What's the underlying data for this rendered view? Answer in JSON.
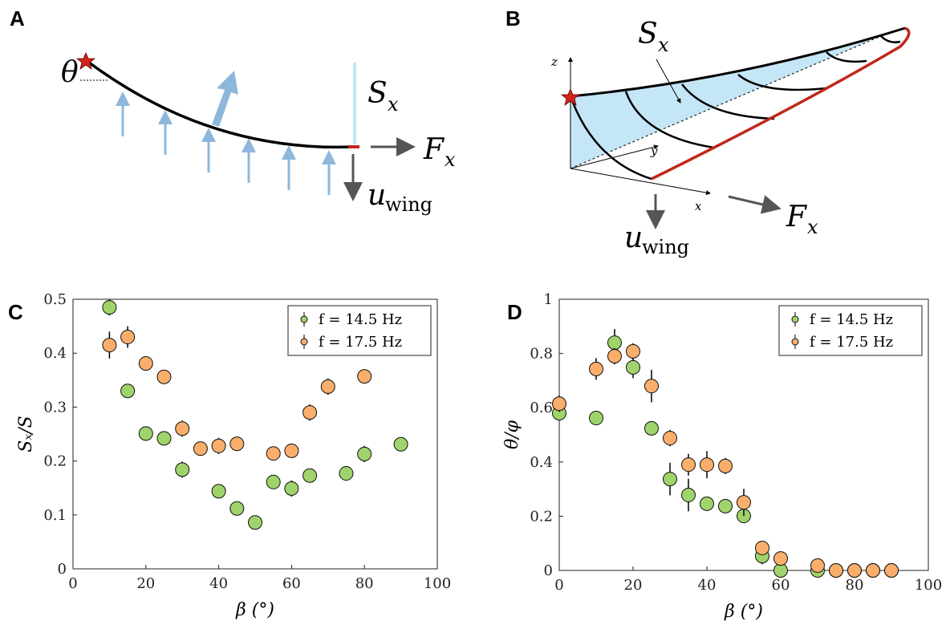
{
  "panel_labels": [
    "A",
    "B",
    "C",
    "D"
  ],
  "diagram_a": {
    "theta": "θ",
    "s_x": {
      "base": "S",
      "sub": "x"
    },
    "f_x": {
      "base": "F",
      "sub": "x"
    },
    "u_wing": {
      "base": "u",
      "sub": "wing"
    }
  },
  "diagram_b": {
    "s_x": {
      "base": "S",
      "sub": "x"
    },
    "f_x": {
      "base": "F",
      "sub": "x"
    },
    "u_wing": {
      "base": "u",
      "sub": "wing"
    },
    "axis_z": "z",
    "axis_y": "y",
    "axis_x": "x"
  },
  "chart_data": [
    {
      "type": "scatter",
      "xlabel": "β (°)",
      "ylabel": "Sₓ/S",
      "xlim": [
        0,
        100
      ],
      "ylim": [
        0,
        0.5
      ],
      "xticks": [
        0,
        20,
        40,
        60,
        80,
        100
      ],
      "yticks": [
        0,
        0.1,
        0.2,
        0.3,
        0.4,
        0.5
      ],
      "legend": "upper right",
      "series": [
        {
          "name": "f = 14.5 Hz",
          "color": "#9fd36b",
          "x": [
            10,
            15,
            20,
            25,
            30,
            40,
            45,
            50,
            55,
            60,
            65,
            75,
            80,
            90
          ],
          "values": [
            0.485,
            0.33,
            0.251,
            0.242,
            0.184,
            0.144,
            0.112,
            0.086,
            0.161,
            0.149,
            0.173,
            0.177,
            0.213,
            0.231
          ],
          "errors": [
            0.015,
            0.01,
            0.01,
            0.01,
            0.015,
            0.01,
            0.01,
            0.01,
            0.01,
            0.015,
            0.012,
            0.01,
            0.015,
            0.01
          ]
        },
        {
          "name": "f = 17.5 Hz",
          "color": "#f9ae6b",
          "x": [
            10,
            15,
            20,
            25,
            30,
            35,
            40,
            45,
            55,
            60,
            65,
            70,
            80
          ],
          "values": [
            0.415,
            0.43,
            0.381,
            0.356,
            0.26,
            0.223,
            0.228,
            0.232,
            0.214,
            0.219,
            0.29,
            0.338,
            0.357
          ],
          "errors": [
            0.025,
            0.02,
            0.01,
            0.01,
            0.015,
            0.01,
            0.015,
            0.01,
            0.01,
            0.01,
            0.015,
            0.015,
            0.01
          ]
        }
      ]
    },
    {
      "type": "scatter",
      "xlabel": "β (°)",
      "ylabel": "θ/φ",
      "xlim": [
        0,
        100
      ],
      "ylim": [
        0,
        1
      ],
      "xticks": [
        0,
        20,
        40,
        60,
        80,
        100
      ],
      "yticks": [
        0,
        0.2,
        0.4,
        0.6,
        0.8,
        1
      ],
      "legend": "upper right",
      "series": [
        {
          "name": "f = 14.5 Hz",
          "color": "#9fd36b",
          "x": [
            0,
            10,
            15,
            20,
            25,
            30,
            35,
            40,
            45,
            50,
            55,
            60,
            70,
            75,
            80,
            85,
            90
          ],
          "values": [
            0.58,
            0.562,
            0.84,
            0.749,
            0.524,
            0.337,
            0.278,
            0.246,
            0.237,
            0.201,
            0.053,
            0,
            0,
            0,
            0,
            0,
            0
          ],
          "errors": [
            0.02,
            0.01,
            0.05,
            0.04,
            0.02,
            0.06,
            0.06,
            0.02,
            0.02,
            0.02,
            0.03,
            0.01,
            0.01,
            0.01,
            0.01,
            0.01,
            0.01
          ]
        },
        {
          "name": "f = 17.5 Hz",
          "color": "#f9ae6b",
          "x": [
            0,
            10,
            15,
            20,
            25,
            30,
            35,
            40,
            45,
            50,
            55,
            60,
            70,
            75,
            80,
            85,
            90
          ],
          "values": [
            0.615,
            0.743,
            0.79,
            0.808,
            0.68,
            0.488,
            0.39,
            0.39,
            0.385,
            0.251,
            0.083,
            0.044,
            0.018,
            0,
            0,
            0,
            0
          ],
          "errors": [
            0.03,
            0.04,
            0.03,
            0.03,
            0.06,
            0.03,
            0.04,
            0.05,
            0.03,
            0.05,
            0.02,
            0.02,
            0.01,
            0.01,
            0.01,
            0.01,
            0.01
          ]
        }
      ]
    }
  ]
}
